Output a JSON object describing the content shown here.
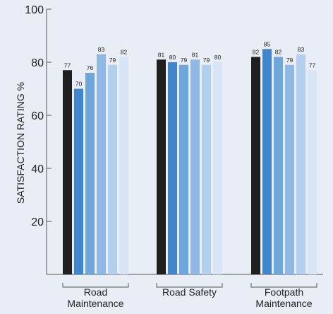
{
  "chart_data": {
    "type": "bar",
    "title": "",
    "xlabel": "",
    "ylabel": "SATISFACTION RATING %",
    "ylim": [
      0,
      100
    ],
    "yticks": [
      20,
      40,
      60,
      80,
      100
    ],
    "categories": [
      "Road Maintenance",
      "Road Safety",
      "Footpath Maintenance"
    ],
    "category_label_lines": [
      [
        "Road",
        "Maintenance"
      ],
      [
        "Road Safety"
      ],
      [
        "Footpath",
        "Maintenance"
      ]
    ],
    "series": [
      {
        "values": [
          77,
          81,
          82
        ],
        "color": "#1f1f1f"
      },
      {
        "values": [
          70,
          80,
          85
        ],
        "color": "#3f86cc"
      },
      {
        "values": [
          76,
          79,
          82
        ],
        "color": "#6ea6da"
      },
      {
        "values": [
          83,
          81,
          79
        ],
        "color": "#8fb9e4"
      },
      {
        "values": [
          79,
          79,
          83
        ],
        "color": "#b3cfee"
      },
      {
        "values": [
          82,
          80,
          77
        ],
        "color": "#d7e5f7"
      }
    ],
    "grid": false,
    "legend": "none"
  }
}
